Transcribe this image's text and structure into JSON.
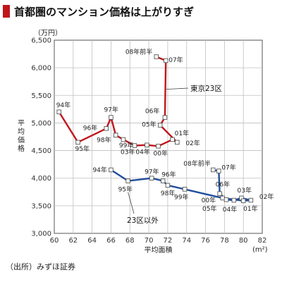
{
  "title": "首都圏のマンション価格は上がりすぎ",
  "source": "（出所）みずほ証券",
  "chart_data": {
    "type": "line",
    "title": "首都圏のマンション価格は上がりすぎ",
    "xlabel": "平均面積",
    "x_unit": "(m²)",
    "ylabel": "平均価格",
    "y_unit": "（万円）",
    "xlim": [
      60,
      82
    ],
    "ylim": [
      3000,
      6500
    ],
    "x_ticks": [
      60,
      62,
      64,
      66,
      68,
      70,
      72,
      74,
      76,
      78,
      80,
      82
    ],
    "y_ticks": [
      3000,
      3500,
      4000,
      4500,
      5000,
      5500,
      6000,
      6500
    ],
    "y_tick_labels": [
      "3,000",
      "3,500",
      "4,000",
      "4,500",
      "5,000",
      "5,500",
      "6,000",
      "6,500"
    ],
    "grid": true,
    "colors": {
      "tokyo": "#c0161c",
      "other": "#1f4e9c",
      "grid": "#bfbfbf"
    },
    "series": [
      {
        "name": "東京23区",
        "color": "#c0161c",
        "points": [
          {
            "label": "94年",
            "x": 60.5,
            "y": 5200
          },
          {
            "label": "95年",
            "x": 62.5,
            "y": 4650
          },
          {
            "label": "96年",
            "x": 65.5,
            "y": 4900
          },
          {
            "label": "97年",
            "x": 66.0,
            "y": 5100
          },
          {
            "label": "98年",
            "x": 66.5,
            "y": 4780
          },
          {
            "label": "99年",
            "x": 67.3,
            "y": 4700
          },
          {
            "label": "03年",
            "x": 68.5,
            "y": 4590
          },
          {
            "label": "04年",
            "x": 69.8,
            "y": 4600
          },
          {
            "label": "00年",
            "x": 71.0,
            "y": 4580
          },
          {
            "label": "05年",
            "x": 71.2,
            "y": 4960
          },
          {
            "label": "06年",
            "x": 71.7,
            "y": 5100
          },
          {
            "label": "01年",
            "x": 72.5,
            "y": 4700
          },
          {
            "label": "02年",
            "x": 73.0,
            "y": 4650
          },
          {
            "label": "07年",
            "x": 71.8,
            "y": 6130
          },
          {
            "label": "08年前半",
            "x": 70.8,
            "y": 6200
          }
        ],
        "path_order": [
          "94年",
          "95年",
          "96年",
          "97年",
          "98年",
          "99年",
          "03年",
          "04年",
          "00年",
          "01年",
          "02年",
          "05年",
          "06年",
          "07年",
          "08年前半"
        ]
      },
      {
        "name": "23区以外",
        "color": "#1f4e9c",
        "points": [
          {
            "label": "94年",
            "x": 66.0,
            "y": 4150
          },
          {
            "label": "95年",
            "x": 67.8,
            "y": 3950
          },
          {
            "label": "97年",
            "x": 70.3,
            "y": 4000
          },
          {
            "label": "96年",
            "x": 71.5,
            "y": 3950
          },
          {
            "label": "98年",
            "x": 72.0,
            "y": 3870
          },
          {
            "label": "99年",
            "x": 73.8,
            "y": 3800
          },
          {
            "label": "08年前半",
            "x": 76.8,
            "y": 4150
          },
          {
            "label": "07年",
            "x": 77.4,
            "y": 4130
          },
          {
            "label": "06年",
            "x": 77.5,
            "y": 3720
          },
          {
            "label": "00年",
            "x": 77.8,
            "y": 3640
          },
          {
            "label": "05年",
            "x": 78.2,
            "y": 3610
          },
          {
            "label": "04年",
            "x": 79.0,
            "y": 3600
          },
          {
            "label": "03年",
            "x": 79.8,
            "y": 3640
          },
          {
            "label": "01年",
            "x": 80.0,
            "y": 3590
          },
          {
            "label": "02年",
            "x": 80.8,
            "y": 3600
          }
        ],
        "path_order": [
          "94年",
          "95年",
          "97年",
          "96年",
          "98年",
          "99年",
          "00年",
          "01年",
          "02年",
          "03年",
          "04年",
          "05年",
          "06年",
          "07年",
          "08年前半"
        ]
      }
    ]
  }
}
